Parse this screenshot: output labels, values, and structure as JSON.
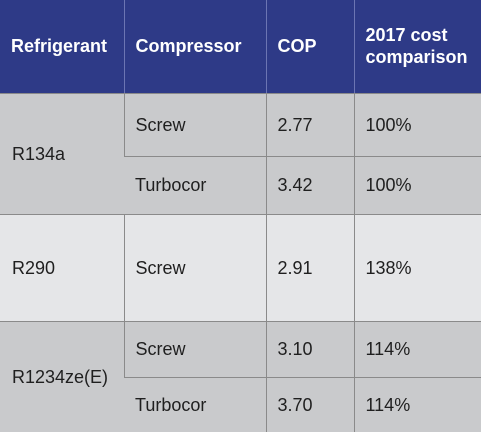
{
  "table": {
    "headers": {
      "refrigerant": "Refrigerant",
      "compressor": "Compressor",
      "cop": "COP",
      "cost_line1": "2017 cost",
      "cost_line2": "comparison"
    },
    "groups": [
      {
        "refrigerant": "R134a",
        "rows": [
          {
            "compressor": "Screw",
            "cop": "2.77",
            "cost": "100%"
          },
          {
            "compressor": "Turbocor",
            "cop": "3.42",
            "cost": "100%"
          }
        ]
      },
      {
        "refrigerant": "R290",
        "rows": [
          {
            "compressor": "Screw",
            "cop": "2.91",
            "cost": "138%"
          }
        ]
      },
      {
        "refrigerant": "R1234ze(E)",
        "rows": [
          {
            "compressor": "Screw",
            "cop": "3.10",
            "cost": "114%"
          },
          {
            "compressor": "Turbocor",
            "cop": "3.70",
            "cost": "114%"
          }
        ]
      }
    ]
  },
  "colors": {
    "header_bg": "#2e3a87",
    "group_dark_bg": "#c9cacc",
    "group_light_bg": "#e5e6e8",
    "border": "#8a8a8a"
  }
}
